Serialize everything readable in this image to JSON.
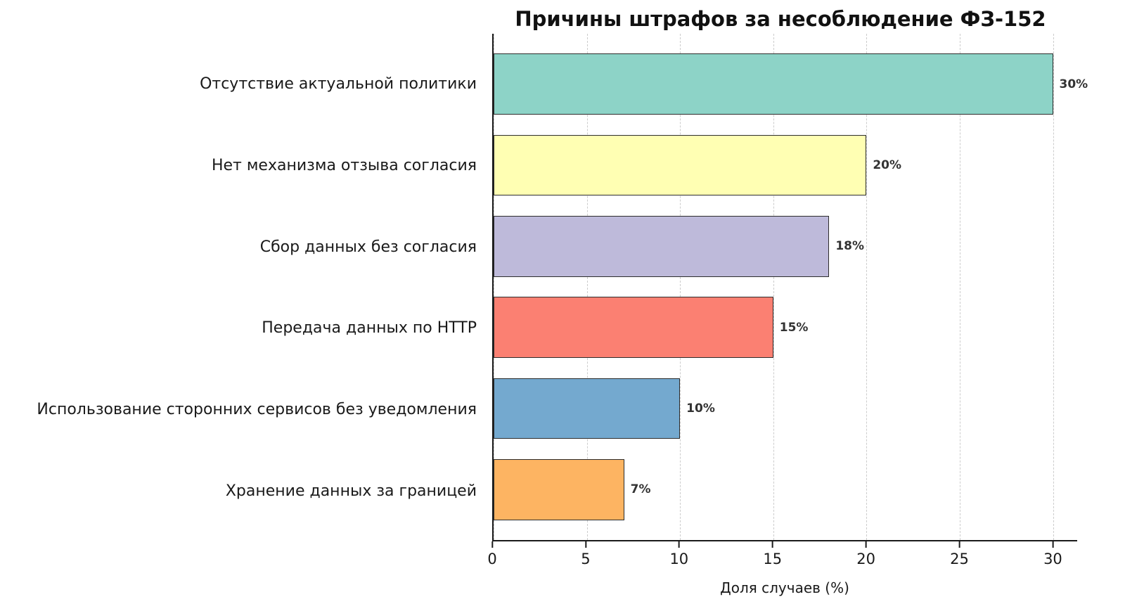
{
  "chart_data": {
    "type": "bar",
    "orientation": "horizontal",
    "title": "Причины штрафов за несоблюдение ФЗ-152",
    "xlabel": "Доля случаев (%)",
    "ylabel": "",
    "categories": [
      "Отсутствие актуальной политики",
      "Нет механизма отзыва согласия",
      "Сбор данных без согласия",
      "Передача данных по HTTP",
      "Использование сторонних сервисов без уведомления",
      "Хранение данных за границей"
    ],
    "values": [
      30,
      20,
      18,
      15,
      10,
      7
    ],
    "value_labels": [
      "30%",
      "20%",
      "18%",
      "15%",
      "10%",
      "7%"
    ],
    "colors": [
      "#8dd3c7",
      "#ffffb3",
      "#bebada",
      "#fb8072",
      "#74a9cf",
      "#fdb462"
    ],
    "bar_edge_color": "#2d2d2d",
    "xlim": [
      0,
      31.3
    ],
    "xticks": [
      0,
      5,
      10,
      15,
      20,
      25,
      30
    ],
    "grid": "vertical dashed",
    "grid_color": "#cccccc",
    "legend": "none"
  }
}
